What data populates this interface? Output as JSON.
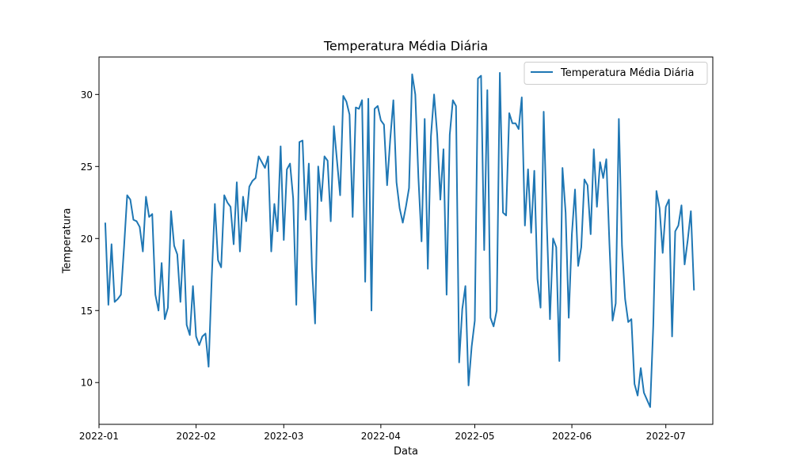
{
  "chart_data": {
    "type": "line",
    "title": "Temperatura Média Diária",
    "xlabel": "Data",
    "ylabel": "Temperatura",
    "x_start": "2022-01-03",
    "x_step": "1 day",
    "xlim": [
      "2022-01-01",
      "2022-07-16"
    ],
    "ylim": [
      7.1,
      32.6
    ],
    "x_ticks": [
      {
        "date": "2022-01-01",
        "label": "2022-01"
      },
      {
        "date": "2022-02-01",
        "label": "2022-02"
      },
      {
        "date": "2022-03-01",
        "label": "2022-03"
      },
      {
        "date": "2022-04-01",
        "label": "2022-04"
      },
      {
        "date": "2022-05-01",
        "label": "2022-05"
      },
      {
        "date": "2022-06-01",
        "label": "2022-06"
      },
      {
        "date": "2022-07-01",
        "label": "2022-07"
      }
    ],
    "y_ticks": [
      10,
      15,
      20,
      25,
      30
    ],
    "grid": false,
    "legend_position": "top-right",
    "series": [
      {
        "name": "Temperatura Média Diária",
        "color": "#1f77b4",
        "values": [
          21.1,
          15.4,
          19.6,
          15.6,
          15.8,
          16.1,
          19.4,
          23.0,
          22.7,
          21.3,
          21.2,
          20.8,
          19.1,
          22.9,
          21.5,
          21.7,
          16.1,
          15.0,
          18.3,
          14.4,
          15.2,
          21.9,
          19.5,
          18.9,
          15.6,
          19.9,
          14.0,
          13.3,
          16.7,
          13.2,
          12.6,
          13.2,
          13.4,
          11.1,
          17.3,
          22.4,
          18.5,
          18.0,
          23.0,
          22.5,
          22.2,
          19.6,
          23.9,
          19.1,
          22.9,
          21.2,
          23.6,
          24.0,
          24.2,
          25.7,
          25.3,
          24.9,
          25.7,
          19.1,
          22.4,
          20.5,
          26.4,
          19.9,
          24.8,
          25.2,
          22.8,
          15.4,
          26.7,
          26.8,
          21.3,
          25.2,
          18.0,
          14.1,
          25.0,
          22.6,
          25.7,
          25.4,
          21.2,
          27.8,
          25.4,
          23.0,
          29.9,
          29.5,
          28.6,
          21.5,
          29.1,
          29.0,
          29.6,
          17.0,
          29.7,
          15.0,
          29.0,
          29.2,
          28.2,
          27.9,
          23.7,
          26.9,
          29.6,
          23.9,
          22.1,
          21.1,
          22.2,
          23.5,
          31.4,
          30.0,
          24.2,
          19.8,
          28.3,
          17.9,
          27.1,
          30.0,
          27.2,
          22.7,
          26.2,
          16.1,
          27.2,
          29.6,
          29.2,
          11.4,
          15.1,
          16.7,
          9.8,
          12.5,
          14.3,
          31.1,
          31.3,
          19.2,
          30.3,
          14.5,
          13.9,
          15.0,
          31.5,
          21.8,
          21.6,
          28.7,
          28.0,
          28.0,
          27.6,
          29.8,
          20.9,
          24.8,
          20.4,
          24.7,
          17.2,
          15.2,
          28.8,
          21.0,
          14.4,
          20.0,
          19.4,
          11.5,
          24.9,
          21.8,
          14.5,
          20.3,
          23.4,
          18.1,
          19.4,
          24.1,
          23.7,
          20.3,
          26.2,
          22.2,
          25.3,
          24.2,
          25.5,
          19.6,
          14.3,
          15.5,
          28.3,
          19.5,
          15.8,
          14.2,
          14.4,
          9.9,
          9.1,
          11.0,
          9.3,
          8.8,
          8.3,
          14.0,
          23.3,
          22.1,
          19.0,
          22.2,
          22.7,
          13.2,
          20.5,
          20.9,
          22.3,
          18.2,
          19.9,
          21.9,
          16.4
        ]
      }
    ]
  }
}
